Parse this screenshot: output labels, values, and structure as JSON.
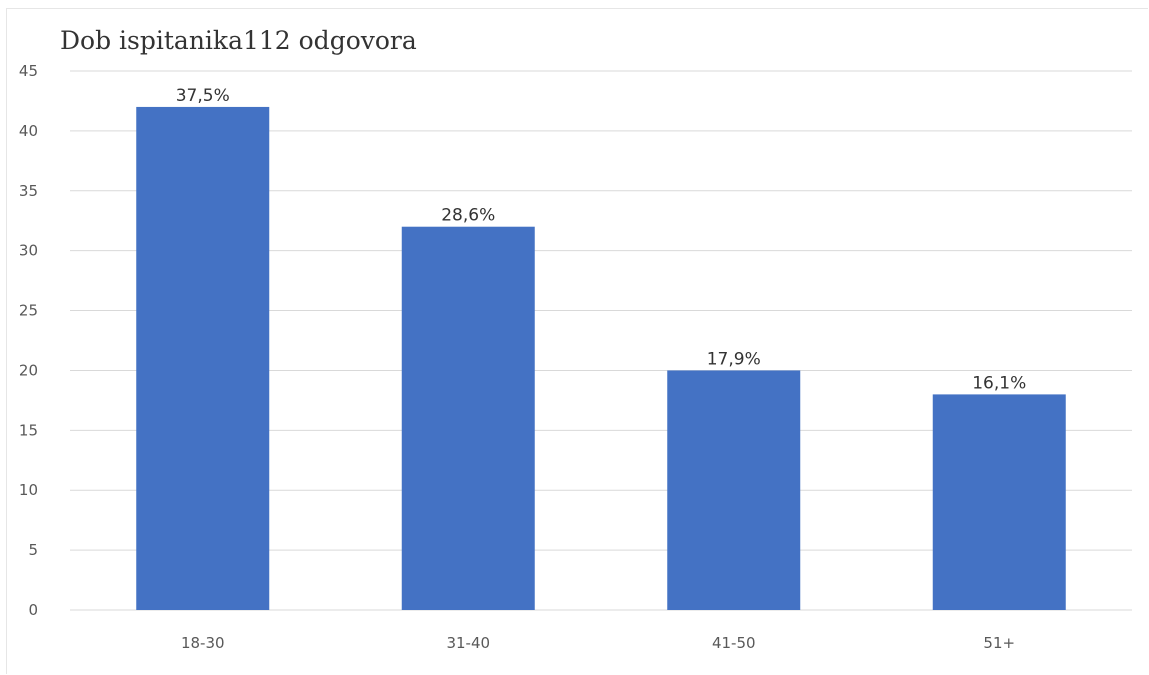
{
  "chart_data": {
    "type": "bar",
    "title": "Dob ispitanika112 odgovora",
    "xlabel": "",
    "ylabel": "",
    "categories": [
      "18-30",
      "31-40",
      "41-50",
      "51+"
    ],
    "series": [
      {
        "values": [
          42,
          32,
          20,
          18
        ],
        "data_labels": [
          "37,5%",
          "28,6%",
          "17,9%",
          "16,1%"
        ]
      }
    ],
    "ylim": [
      0,
      45
    ],
    "yticks": [
      0,
      5,
      10,
      15,
      20,
      25,
      30,
      35,
      40,
      45
    ],
    "grid": "horizontal",
    "legend": "none",
    "colors": {
      "bar": "#4472c4",
      "grid": "#d9d9d9",
      "text": "#595959"
    }
  }
}
